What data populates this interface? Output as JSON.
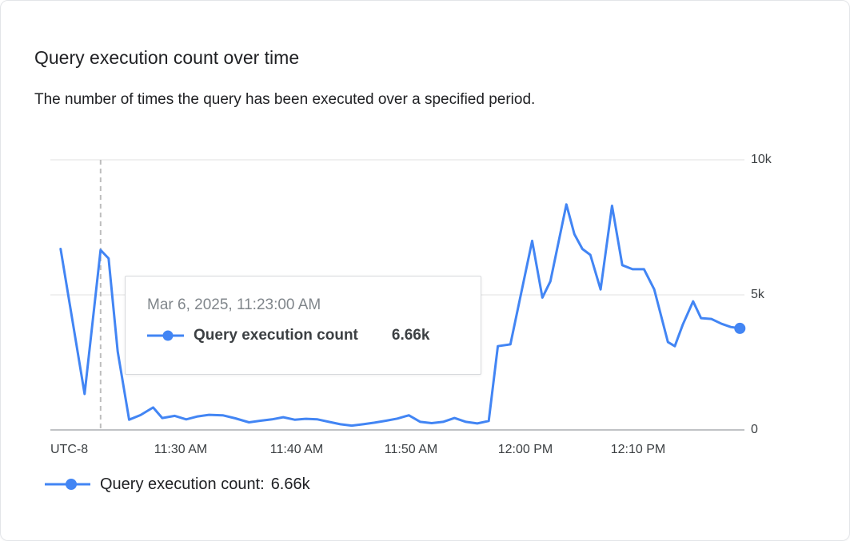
{
  "header": {
    "title": "Query execution count over time",
    "subtitle": "The number of times the query has been executed over a specified period."
  },
  "axes": {
    "y_ticks": [
      "10k",
      "5k",
      "0"
    ],
    "x_ticks": [
      "UTC-8",
      "11:30 AM",
      "11:40 AM",
      "11:50 AM",
      "12:00 PM",
      "12:10 PM"
    ]
  },
  "tooltip": {
    "timestamp": "Mar 6, 2025, 11:23:00 AM",
    "series_label": "Query execution count",
    "value": "6.66k"
  },
  "legend": {
    "label": "Query execution count:",
    "value": "6.66k"
  },
  "colors": {
    "line": "#4285f4",
    "marker": "#4285f4",
    "grid": "#e0e0e0",
    "axis_line": "#80868b",
    "hover_dashed_line": "#bdbdbd",
    "tooltip_timestamp_text": "#80868b",
    "text_primary": "#202124",
    "tick_label": "#3c4043"
  },
  "chart_data": {
    "type": "line",
    "title": "Query execution count over time",
    "ylabel": "Query execution count",
    "ylim": [
      0,
      10000
    ],
    "y_tick_values": [
      0,
      5000,
      10000
    ],
    "y_tick_labels": [
      "0",
      "5k",
      "10k"
    ],
    "grid": "horizontal",
    "legend_position": "bottom-left",
    "x_axis": {
      "unit": "minutes after 11:00 AM",
      "timezone": "UTC-8",
      "date": "Mar 6, 2025",
      "range": [
        18.6,
        79.4
      ],
      "tick_values": [
        30,
        40,
        50,
        60,
        70
      ],
      "tick_labels": [
        "11:30 AM",
        "11:40 AM",
        "11:50 AM",
        "12:00 PM",
        "12:10 PM"
      ]
    },
    "annotation": {
      "t": 23,
      "label": "Mar 6, 2025, 11:23:00 AM",
      "value": 6660,
      "display_value": "6.66k"
    },
    "latest_value": 3760,
    "series": [
      {
        "name": "Query execution count",
        "color": "#4285f4",
        "points": [
          [
            19.5,
            6700
          ],
          [
            21.6,
            1330
          ],
          [
            23,
            6660
          ],
          [
            23.7,
            6350
          ],
          [
            24.5,
            2900
          ],
          [
            25.5,
            380
          ],
          [
            26.5,
            550
          ],
          [
            27.6,
            830
          ],
          [
            28.4,
            440
          ],
          [
            29.5,
            520
          ],
          [
            30.5,
            390
          ],
          [
            31.5,
            500
          ],
          [
            32.5,
            560
          ],
          [
            33.7,
            540
          ],
          [
            34.8,
            430
          ],
          [
            36,
            280
          ],
          [
            37,
            340
          ],
          [
            38,
            390
          ],
          [
            39,
            470
          ],
          [
            40,
            380
          ],
          [
            41,
            410
          ],
          [
            42,
            390
          ],
          [
            43,
            300
          ],
          [
            44,
            210
          ],
          [
            45,
            160
          ],
          [
            46,
            210
          ],
          [
            47,
            270
          ],
          [
            48,
            340
          ],
          [
            49,
            420
          ],
          [
            50,
            540
          ],
          [
            51,
            300
          ],
          [
            52,
            250
          ],
          [
            53,
            300
          ],
          [
            54,
            440
          ],
          [
            55,
            300
          ],
          [
            56,
            240
          ],
          [
            57,
            330
          ],
          [
            57.8,
            3100
          ],
          [
            58.9,
            3170
          ],
          [
            60.8,
            7000
          ],
          [
            61.7,
            4900
          ],
          [
            62.4,
            5500
          ],
          [
            63.8,
            8350
          ],
          [
            64.5,
            7250
          ],
          [
            65.2,
            6700
          ],
          [
            65.9,
            6480
          ],
          [
            66.8,
            5200
          ],
          [
            67.8,
            8300
          ],
          [
            68.7,
            6100
          ],
          [
            69.6,
            5950
          ],
          [
            70.6,
            5950
          ],
          [
            71.5,
            5200
          ],
          [
            72.7,
            3250
          ],
          [
            73.3,
            3100
          ],
          [
            74,
            3900
          ],
          [
            74.9,
            4760
          ],
          [
            75.6,
            4140
          ],
          [
            76.5,
            4110
          ],
          [
            77.4,
            3930
          ],
          [
            78.2,
            3810
          ],
          [
            79,
            3760
          ]
        ]
      }
    ]
  }
}
